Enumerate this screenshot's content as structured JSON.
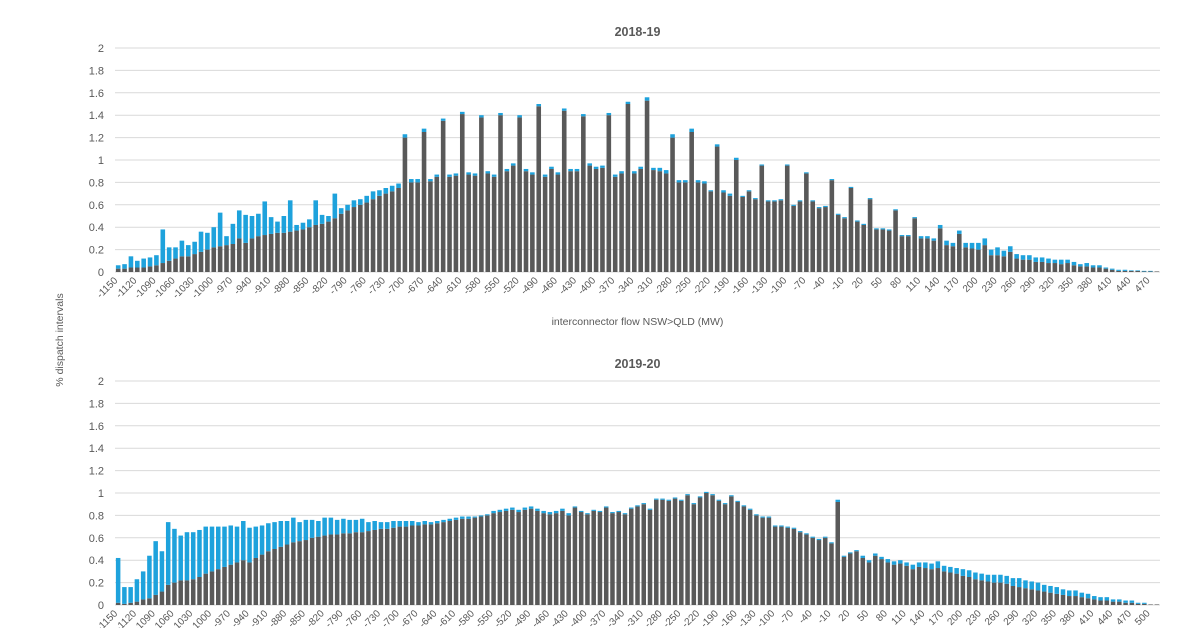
{
  "chart_data": {
    "type": "bar",
    "stacked": true,
    "ylabel": "% dispatch intervals",
    "ylim": [
      0,
      2
    ],
    "yticks": [
      0,
      0.2,
      0.4,
      0.6,
      0.8,
      1,
      1.2,
      1.4,
      1.6,
      1.8,
      2
    ],
    "x_start": -1150,
    "x_step": 10,
    "label_every": 3,
    "series_colors": {
      "base": "#595959",
      "top": "#1ea2dc"
    },
    "panels": [
      {
        "title": "2018-19",
        "xlabel": "interconnector flow NSW>QLD (MW)",
        "base": [
          0.03,
          0.03,
          0.04,
          0.04,
          0.04,
          0.05,
          0.06,
          0.08,
          0.1,
          0.12,
          0.14,
          0.14,
          0.16,
          0.18,
          0.2,
          0.22,
          0.23,
          0.24,
          0.25,
          0.3,
          0.26,
          0.3,
          0.32,
          0.33,
          0.34,
          0.35,
          0.35,
          0.36,
          0.37,
          0.38,
          0.4,
          0.42,
          0.43,
          0.45,
          0.48,
          0.52,
          0.55,
          0.58,
          0.6,
          0.62,
          0.65,
          0.68,
          0.7,
          0.72,
          0.75,
          1.2,
          0.8,
          0.8,
          1.25,
          0.81,
          0.85,
          1.35,
          0.85,
          0.86,
          1.41,
          0.87,
          0.86,
          1.38,
          0.88,
          0.85,
          1.4,
          0.9,
          0.95,
          1.38,
          0.9,
          0.87,
          1.48,
          0.85,
          0.92,
          0.87,
          1.44,
          0.9,
          0.9,
          1.39,
          0.95,
          0.92,
          0.93,
          1.4,
          0.85,
          0.88,
          1.5,
          0.88,
          0.92,
          1.53,
          0.91,
          0.9,
          0.88,
          1.2,
          0.8,
          0.8,
          1.25,
          0.8,
          0.79,
          0.72,
          1.12,
          0.71,
          0.68,
          1.0,
          0.67,
          0.72,
          0.65,
          0.95,
          0.63,
          0.63,
          0.64,
          0.95,
          0.59,
          0.63,
          0.88,
          0.63,
          0.57,
          0.58,
          0.82,
          0.51,
          0.48,
          0.75,
          0.45,
          0.42,
          0.65,
          0.38,
          0.38,
          0.37,
          0.55,
          0.32,
          0.32,
          0.48,
          0.3,
          0.3,
          0.28,
          0.39,
          0.24,
          0.23,
          0.34,
          0.22,
          0.21,
          0.2,
          0.24,
          0.15,
          0.15,
          0.14,
          0.18,
          0.12,
          0.11,
          0.11,
          0.09,
          0.09,
          0.08,
          0.08,
          0.07,
          0.08,
          0.06,
          0.05,
          0.05,
          0.04,
          0.04,
          0.03,
          0.02,
          0.01,
          0.01,
          0.01,
          0.01,
          0.005,
          0.005,
          0.005
        ],
        "top": [
          0.03,
          0.04,
          0.1,
          0.06,
          0.08,
          0.08,
          0.09,
          0.3,
          0.12,
          0.1,
          0.14,
          0.1,
          0.11,
          0.18,
          0.15,
          0.18,
          0.3,
          0.08,
          0.18,
          0.25,
          0.25,
          0.2,
          0.2,
          0.3,
          0.15,
          0.1,
          0.15,
          0.28,
          0.05,
          0.06,
          0.07,
          0.22,
          0.08,
          0.05,
          0.22,
          0.05,
          0.05,
          0.06,
          0.05,
          0.06,
          0.07,
          0.05,
          0.05,
          0.05,
          0.04,
          0.03,
          0.03,
          0.03,
          0.03,
          0.02,
          0.02,
          0.02,
          0.02,
          0.02,
          0.02,
          0.02,
          0.02,
          0.02,
          0.02,
          0.02,
          0.02,
          0.02,
          0.02,
          0.02,
          0.02,
          0.02,
          0.02,
          0.02,
          0.02,
          0.02,
          0.02,
          0.02,
          0.02,
          0.02,
          0.02,
          0.02,
          0.02,
          0.02,
          0.02,
          0.02,
          0.02,
          0.02,
          0.02,
          0.03,
          0.02,
          0.03,
          0.03,
          0.03,
          0.02,
          0.02,
          0.03,
          0.02,
          0.02,
          0.01,
          0.02,
          0.02,
          0.02,
          0.02,
          0.01,
          0.01,
          0.01,
          0.01,
          0.01,
          0.01,
          0.01,
          0.01,
          0.01,
          0.01,
          0.01,
          0.01,
          0.01,
          0.01,
          0.01,
          0.01,
          0.01,
          0.01,
          0.01,
          0.01,
          0.01,
          0.01,
          0.01,
          0.01,
          0.01,
          0.01,
          0.01,
          0.01,
          0.02,
          0.02,
          0.02,
          0.03,
          0.04,
          0.03,
          0.03,
          0.04,
          0.05,
          0.06,
          0.06,
          0.05,
          0.07,
          0.05,
          0.05,
          0.04,
          0.04,
          0.04,
          0.04,
          0.04,
          0.04,
          0.03,
          0.04,
          0.03,
          0.03,
          0.02,
          0.03,
          0.02,
          0.02,
          0.01,
          0.01,
          0.01,
          0.01,
          0.005,
          0.005,
          0.005,
          0.005
        ]
      },
      {
        "title": "2019-20",
        "xlabel": "",
        "base": [
          0.02,
          0.01,
          0.02,
          0.03,
          0.05,
          0.06,
          0.09,
          0.12,
          0.18,
          0.2,
          0.22,
          0.22,
          0.23,
          0.25,
          0.28,
          0.3,
          0.32,
          0.34,
          0.36,
          0.38,
          0.4,
          0.38,
          0.42,
          0.45,
          0.48,
          0.5,
          0.52,
          0.54,
          0.56,
          0.57,
          0.58,
          0.6,
          0.61,
          0.62,
          0.63,
          0.63,
          0.64,
          0.64,
          0.65,
          0.65,
          0.66,
          0.67,
          0.68,
          0.68,
          0.69,
          0.7,
          0.7,
          0.71,
          0.71,
          0.72,
          0.72,
          0.73,
          0.74,
          0.75,
          0.76,
          0.77,
          0.77,
          0.78,
          0.79,
          0.8,
          0.82,
          0.83,
          0.84,
          0.85,
          0.83,
          0.85,
          0.86,
          0.84,
          0.82,
          0.81,
          0.82,
          0.84,
          0.8,
          0.87,
          0.83,
          0.81,
          0.84,
          0.83,
          0.87,
          0.82,
          0.83,
          0.81,
          0.86,
          0.88,
          0.9,
          0.85,
          0.94,
          0.94,
          0.93,
          0.95,
          0.93,
          0.98,
          0.9,
          0.96,
          1.0,
          0.98,
          0.93,
          0.9,
          0.97,
          0.92,
          0.88,
          0.85,
          0.8,
          0.78,
          0.78,
          0.7,
          0.7,
          0.69,
          0.68,
          0.65,
          0.63,
          0.6,
          0.58,
          0.6,
          0.55,
          0.92,
          0.43,
          0.46,
          0.48,
          0.42,
          0.38,
          0.44,
          0.41,
          0.38,
          0.36,
          0.37,
          0.35,
          0.32,
          0.34,
          0.33,
          0.32,
          0.33,
          0.3,
          0.29,
          0.28,
          0.26,
          0.25,
          0.23,
          0.22,
          0.21,
          0.2,
          0.2,
          0.19,
          0.17,
          0.16,
          0.15,
          0.14,
          0.13,
          0.12,
          0.11,
          0.1,
          0.09,
          0.08,
          0.08,
          0.07,
          0.06,
          0.05,
          0.04,
          0.04,
          0.03,
          0.03,
          0.02,
          0.02,
          0.01,
          0.01,
          0.005,
          0.005
        ],
        "top": [
          0.4,
          0.15,
          0.14,
          0.2,
          0.25,
          0.38,
          0.48,
          0.36,
          0.56,
          0.48,
          0.4,
          0.43,
          0.42,
          0.42,
          0.42,
          0.4,
          0.38,
          0.36,
          0.35,
          0.32,
          0.35,
          0.31,
          0.28,
          0.26,
          0.25,
          0.24,
          0.23,
          0.21,
          0.22,
          0.17,
          0.18,
          0.16,
          0.14,
          0.16,
          0.15,
          0.13,
          0.13,
          0.12,
          0.11,
          0.12,
          0.08,
          0.08,
          0.06,
          0.06,
          0.06,
          0.05,
          0.05,
          0.04,
          0.03,
          0.03,
          0.02,
          0.02,
          0.02,
          0.02,
          0.02,
          0.02,
          0.02,
          0.01,
          0.01,
          0.01,
          0.02,
          0.02,
          0.02,
          0.02,
          0.02,
          0.02,
          0.02,
          0.02,
          0.02,
          0.02,
          0.02,
          0.02,
          0.02,
          0.01,
          0.01,
          0.01,
          0.01,
          0.01,
          0.01,
          0.01,
          0.01,
          0.01,
          0.01,
          0.01,
          0.01,
          0.01,
          0.01,
          0.01,
          0.01,
          0.01,
          0.01,
          0.01,
          0.01,
          0.01,
          0.01,
          0.01,
          0.01,
          0.01,
          0.01,
          0.01,
          0.01,
          0.01,
          0.01,
          0.01,
          0.01,
          0.01,
          0.01,
          0.01,
          0.01,
          0.01,
          0.01,
          0.01,
          0.01,
          0.01,
          0.01,
          0.02,
          0.01,
          0.01,
          0.01,
          0.02,
          0.02,
          0.02,
          0.02,
          0.03,
          0.03,
          0.03,
          0.03,
          0.04,
          0.04,
          0.05,
          0.05,
          0.06,
          0.05,
          0.05,
          0.05,
          0.06,
          0.06,
          0.06,
          0.06,
          0.06,
          0.07,
          0.07,
          0.07,
          0.07,
          0.08,
          0.07,
          0.07,
          0.07,
          0.06,
          0.06,
          0.06,
          0.05,
          0.05,
          0.05,
          0.04,
          0.04,
          0.03,
          0.03,
          0.03,
          0.02,
          0.02,
          0.02,
          0.02,
          0.01,
          0.01
        ]
      }
    ]
  }
}
